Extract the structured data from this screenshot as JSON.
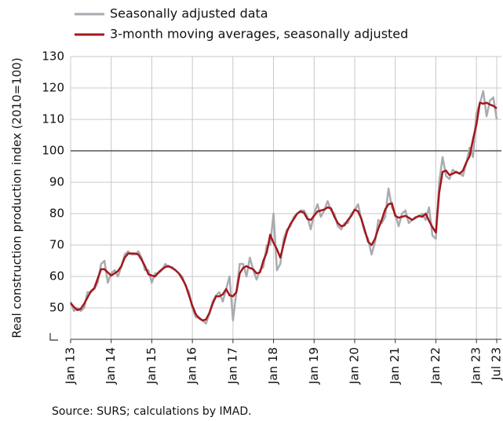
{
  "chart_data": {
    "type": "line",
    "y_axis_label": "Real construction production index (2010=100)",
    "source": "Source: SURS; calculations by IMAD.",
    "categories": [
      "Jan 13",
      null,
      null,
      null,
      null,
      null,
      null,
      null,
      null,
      null,
      null,
      null,
      "Jan 14",
      null,
      null,
      null,
      null,
      null,
      null,
      null,
      null,
      null,
      null,
      null,
      "Jan 15",
      null,
      null,
      null,
      null,
      null,
      null,
      null,
      null,
      null,
      null,
      null,
      "Jan 16",
      null,
      null,
      null,
      null,
      null,
      null,
      null,
      null,
      null,
      null,
      null,
      "Jan 17",
      null,
      null,
      null,
      null,
      null,
      null,
      null,
      null,
      null,
      null,
      null,
      "Jan 18",
      null,
      null,
      null,
      null,
      null,
      null,
      null,
      null,
      null,
      null,
      null,
      "Jan 19",
      null,
      null,
      null,
      null,
      null,
      null,
      null,
      null,
      null,
      null,
      null,
      "Jan 20",
      null,
      null,
      null,
      null,
      null,
      null,
      null,
      null,
      null,
      null,
      null,
      "Jan 21",
      null,
      null,
      null,
      null,
      null,
      null,
      null,
      null,
      null,
      null,
      null,
      "Jan 22",
      null,
      null,
      null,
      null,
      null,
      null,
      null,
      null,
      null,
      null,
      null,
      "Jan 23",
      null,
      null,
      null,
      null,
      null,
      "Jul 23"
    ],
    "series": [
      {
        "name": "Seasonally adjusted data",
        "color": "#a9abb0",
        "width": 2.5,
        "values": [
          52,
          49,
          50,
          49,
          50,
          55,
          55,
          56,
          58,
          64,
          65,
          58,
          61,
          62,
          60,
          63,
          67,
          68,
          67,
          67,
          68,
          66,
          62,
          62,
          58,
          61,
          61,
          62,
          64,
          63,
          63,
          62,
          61,
          60,
          57,
          55,
          50,
          47,
          47,
          46,
          45,
          48,
          52,
          54,
          55,
          52,
          56,
          60,
          46,
          55,
          64,
          64,
          60,
          66,
          62,
          59,
          62,
          63,
          70,
          70,
          80,
          62,
          64,
          72,
          75,
          76,
          79,
          80,
          81,
          81,
          79,
          75,
          80,
          83,
          79,
          81,
          84,
          81,
          80,
          76,
          75,
          77,
          77,
          80,
          81,
          83,
          78,
          74,
          72,
          67,
          71,
          78,
          77,
          79,
          88,
          82,
          80,
          76,
          80,
          81,
          77,
          78,
          79,
          79,
          80,
          78,
          82,
          73,
          72,
          90,
          98,
          92,
          91,
          94,
          93,
          93,
          92,
          96,
          101,
          98,
          112,
          115,
          119,
          111,
          116,
          117,
          110
        ]
      },
      {
        "name": "3-month moving averages, seasonally adjusted",
        "color": "#a3171c",
        "width": 2.5,
        "values": [
          51.5,
          50.3,
          49.3,
          49.7,
          51.3,
          53.3,
          55.3,
          56.3,
          59.3,
          62.3,
          62.3,
          61.3,
          60.3,
          61,
          61.7,
          63.3,
          66,
          67.3,
          67.3,
          67.3,
          67,
          65.3,
          63.3,
          60.7,
          60.3,
          60,
          61.3,
          62.3,
          63,
          63.3,
          62.7,
          62,
          61,
          59.3,
          57.3,
          54,
          50.7,
          48,
          46.7,
          46,
          46.3,
          48.3,
          51.3,
          53.7,
          53.7,
          54.3,
          56,
          54,
          53.7,
          55,
          61,
          62.7,
          63.3,
          62.7,
          62.3,
          61,
          61.3,
          65,
          67.7,
          73.3,
          70.7,
          68.7,
          66,
          70.3,
          74.3,
          76.7,
          78.3,
          80,
          80.7,
          80.3,
          78.3,
          78,
          79.3,
          80.7,
          81,
          81.3,
          82,
          81.7,
          79,
          77,
          76,
          76.3,
          78,
          79.3,
          81.3,
          80.7,
          78.3,
          74.7,
          71,
          70,
          72,
          75.3,
          78,
          81.3,
          83,
          83.3,
          79.3,
          78.7,
          79,
          79.3,
          78.7,
          78,
          78.7,
          79.3,
          79,
          80,
          77.7,
          75.7,
          74,
          86.7,
          93.3,
          93.7,
          92.3,
          92.7,
          93.3,
          92.7,
          93.7,
          96.3,
          98.3,
          103.7,
          108.3,
          115.3,
          115,
          115.3,
          114.7,
          114.3,
          113.5
        ]
      }
    ],
    "ylim": [
      40,
      130
    ],
    "yticks": [
      50,
      60,
      70,
      80,
      90,
      100,
      110,
      120,
      130
    ],
    "reference_line": 100,
    "grid": true
  }
}
